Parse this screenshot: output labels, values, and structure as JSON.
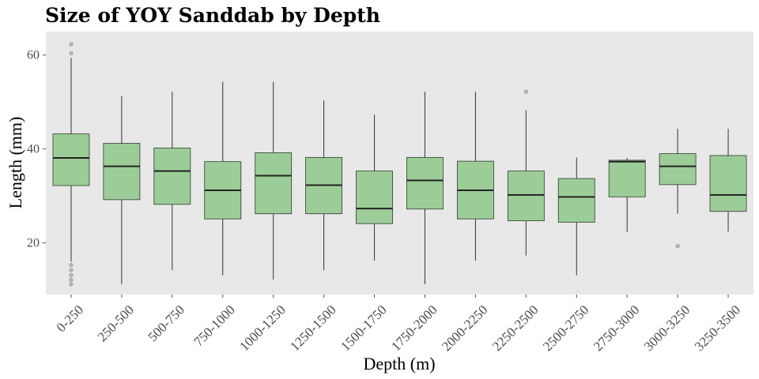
{
  "chart_data": {
    "type": "boxplot",
    "title": "Size of YOY Sanddab by Depth",
    "xlabel": "Depth (m)",
    "ylabel": "Length (mm)",
    "ylim": [
      9,
      65
    ],
    "yticks": [
      20,
      40,
      60
    ],
    "grid": false,
    "colors": {
      "panel_background": "#e8e8e8",
      "box_fill": "#9ccd98",
      "box_stroke": "#2f3a2f",
      "median": "#222222",
      "outlier": "#9a9a9a"
    },
    "categories": [
      "0-250",
      "250-500",
      "500-750",
      "750-1000",
      "1000-1250",
      "1250-1500",
      "1500-1750",
      "1750-2000",
      "2000-2250",
      "2250-2500",
      "2500-2750",
      "2750-3000",
      "3000-3250",
      "3250-3500"
    ],
    "boxes": [
      {
        "min": 16,
        "q1": 32.2,
        "median": 38.1,
        "q3": 43.2,
        "max": 59.4,
        "outliers": [
          62.3,
          60.4,
          15.3,
          14.2,
          13.1,
          12.1,
          11.2
        ]
      },
      {
        "min": 11.2,
        "q1": 29.2,
        "median": 36.3,
        "q3": 41.2,
        "max": 51.3,
        "outliers": []
      },
      {
        "min": 14.2,
        "q1": 28.2,
        "median": 35.3,
        "q3": 40.2,
        "max": 52.2,
        "outliers": []
      },
      {
        "min": 13.1,
        "q1": 25.1,
        "median": 31.2,
        "q3": 37.3,
        "max": 54.3,
        "outliers": []
      },
      {
        "min": 12.2,
        "q1": 26.2,
        "median": 34.3,
        "q3": 39.2,
        "max": 54.3,
        "outliers": []
      },
      {
        "min": 14.2,
        "q1": 26.2,
        "median": 32.3,
        "q3": 38.2,
        "max": 50.3,
        "outliers": []
      },
      {
        "min": 16.2,
        "q1": 24.1,
        "median": 27.3,
        "q3": 35.3,
        "max": 47.3,
        "outliers": []
      },
      {
        "min": 11.2,
        "q1": 27.2,
        "median": 33.3,
        "q3": 38.2,
        "max": 52.2,
        "outliers": []
      },
      {
        "min": 16.2,
        "q1": 25.1,
        "median": 31.2,
        "q3": 37.4,
        "max": 52.2,
        "outliers": []
      },
      {
        "min": 17.3,
        "q1": 24.7,
        "median": 30.2,
        "q3": 35.3,
        "max": 48.2,
        "outliers": [
          52.2
        ]
      },
      {
        "min": 13.1,
        "q1": 24.4,
        "median": 29.8,
        "q3": 33.7,
        "max": 38.2,
        "outliers": []
      },
      {
        "min": 22.3,
        "q1": 29.8,
        "median": 37.3,
        "q3": 37.6,
        "max": 38.1,
        "outliers": []
      },
      {
        "min": 26.2,
        "q1": 32.4,
        "median": 36.3,
        "q3": 39.0,
        "max": 44.3,
        "outliers": [
          19.3
        ]
      },
      {
        "min": 22.4,
        "q1": 26.7,
        "median": 30.2,
        "q3": 38.6,
        "max": 44.3,
        "outliers": []
      }
    ]
  }
}
